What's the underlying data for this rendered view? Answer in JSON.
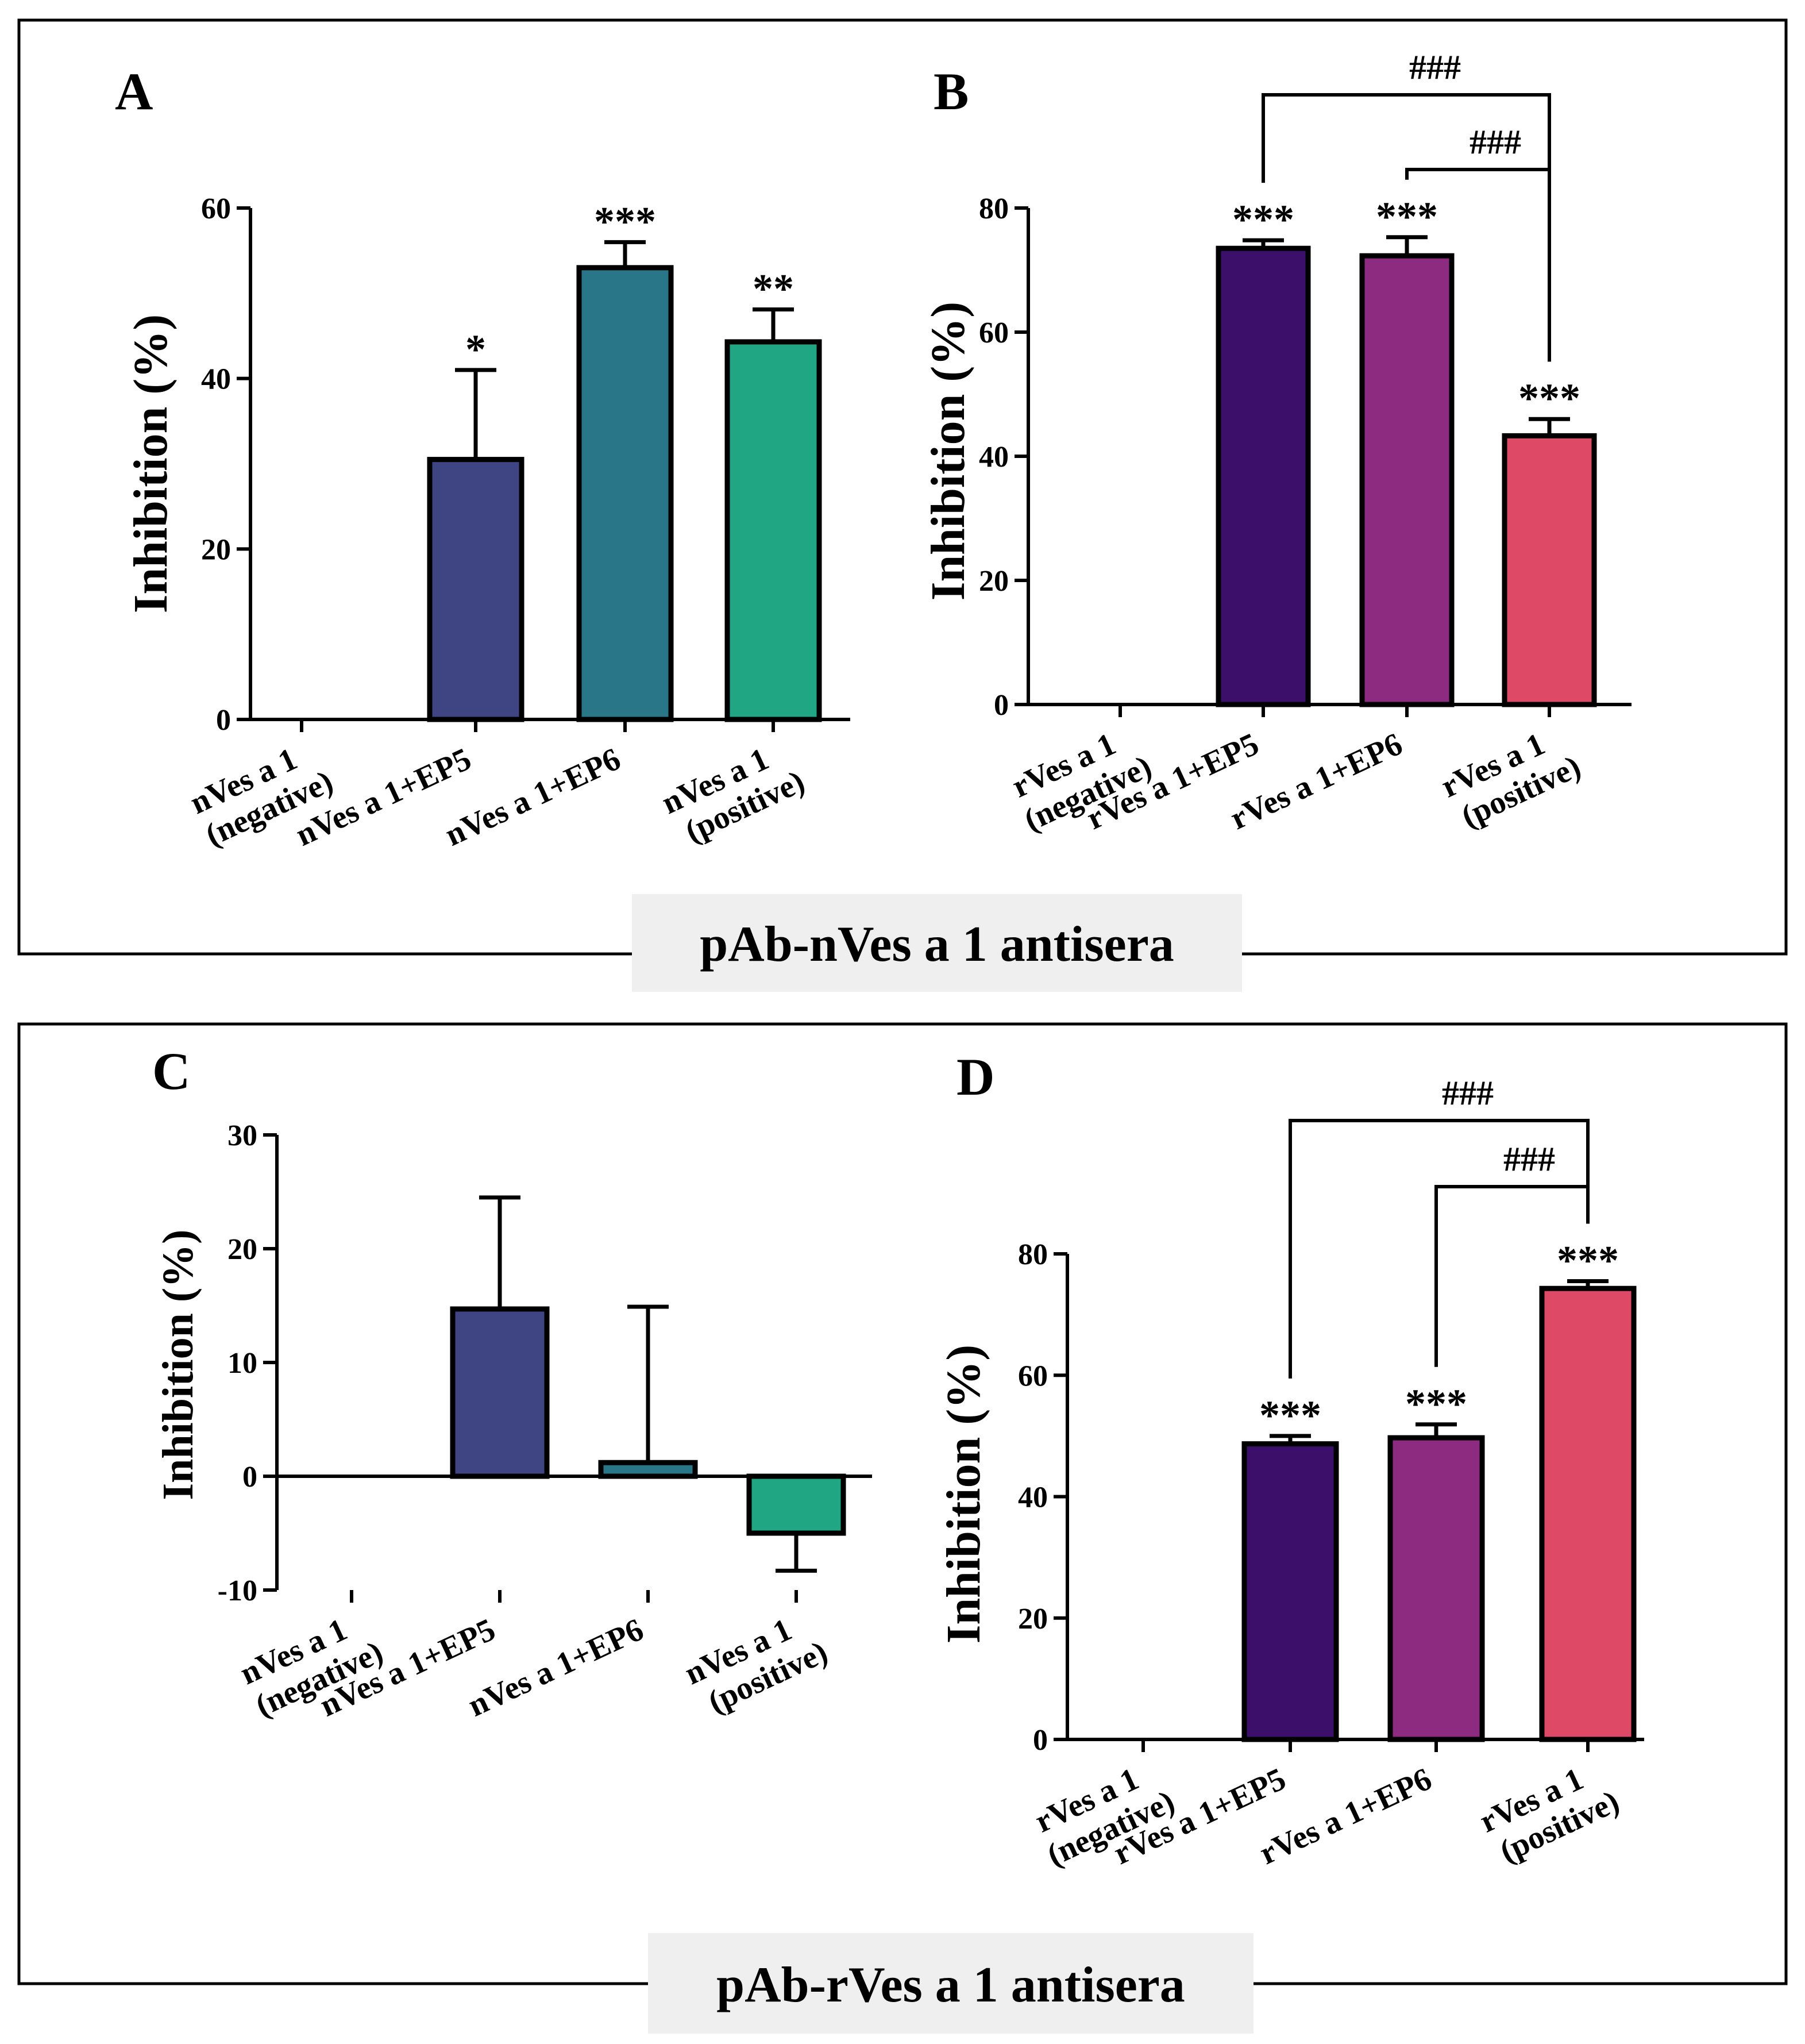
{
  "colors": {
    "indigo": "#3f4582",
    "teal": "#2a7689",
    "green": "#21a683",
    "deep_purple": "#3c0f6b",
    "magenta": "#8c2b80",
    "red": "#de4966",
    "caption_bg": "#efefef",
    "black": "#000000"
  },
  "groups": [
    {
      "caption": "pAb-nVes a 1 antisera"
    },
    {
      "caption": "pAb-rVes a 1 antisera"
    }
  ],
  "chart_data": [
    {
      "panel": "A",
      "type": "bar",
      "ylabel": "Inhibition (%)",
      "ylim": [
        0,
        60
      ],
      "yticks": [
        0,
        20,
        40,
        60
      ],
      "categories": [
        {
          "line1": "nVes a 1",
          "line2": "(negative)"
        },
        {
          "line1": "nVes a 1+EP5",
          "line2": ""
        },
        {
          "line1": "nVes a 1+EP6",
          "line2": ""
        },
        {
          "line1": "nVes a 1",
          "line2": "(positive)"
        }
      ],
      "values": [
        0,
        30.5,
        53,
        44.3
      ],
      "errors": [
        0,
        10.5,
        3,
        3.8
      ],
      "colors": [
        "indigo",
        "indigo",
        "teal",
        "green"
      ],
      "significance": [
        "",
        "*",
        "***",
        "**"
      ],
      "comparisons": []
    },
    {
      "panel": "B",
      "type": "bar",
      "ylabel": "Inhibition (%)",
      "ylim": [
        0,
        80
      ],
      "yticks": [
        0,
        20,
        40,
        60,
        80
      ],
      "categories": [
        {
          "line1": "rVes a 1",
          "line2": "(negative)"
        },
        {
          "line1": "rVes a 1+EP5",
          "line2": ""
        },
        {
          "line1": "rVes a 1+EP6",
          "line2": ""
        },
        {
          "line1": "rVes a 1",
          "line2": "(positive)"
        }
      ],
      "values": [
        0,
        73.5,
        72.3,
        43.3
      ],
      "errors": [
        0,
        1.3,
        3,
        2.7
      ],
      "colors": [
        "deep_purple",
        "deep_purple",
        "magenta",
        "red"
      ],
      "significance": [
        "",
        "***",
        "***",
        "***"
      ],
      "comparisons": [
        {
          "from": 1,
          "to": 3,
          "label": "###"
        },
        {
          "from": 2,
          "to": 3,
          "label": "###"
        }
      ]
    },
    {
      "panel": "C",
      "type": "bar",
      "ylabel": "Inhibition (%)",
      "ylim": [
        -10,
        30
      ],
      "yticks": [
        -10,
        0,
        10,
        20,
        30
      ],
      "categories": [
        {
          "line1": "nVes a 1",
          "line2": "(negative)"
        },
        {
          "line1": "nVes a 1+EP5",
          "line2": ""
        },
        {
          "line1": "nVes a 1+EP6",
          "line2": ""
        },
        {
          "line1": "nVes a 1",
          "line2": "(positive)"
        }
      ],
      "values": [
        0,
        14.7,
        1.2,
        -5
      ],
      "errors": [
        0,
        9.8,
        13.7,
        3.3
      ],
      "colors": [
        "indigo",
        "indigo",
        "teal",
        "green"
      ],
      "significance": [
        "",
        "",
        "",
        ""
      ],
      "comparisons": []
    },
    {
      "panel": "D",
      "type": "bar",
      "ylabel": "Inhibition (%)",
      "ylim": [
        0,
        80
      ],
      "yticks": [
        0,
        20,
        40,
        60,
        80
      ],
      "categories": [
        {
          "line1": "rVes a 1",
          "line2": "(negative)"
        },
        {
          "line1": "rVes a 1+EP5",
          "line2": ""
        },
        {
          "line1": "rVes a 1+EP6",
          "line2": ""
        },
        {
          "line1": "rVes a 1",
          "line2": "(positive)"
        }
      ],
      "values": [
        0,
        48.7,
        49.7,
        74.3
      ],
      "errors": [
        0,
        1.3,
        2.2,
        1.2
      ],
      "colors": [
        "deep_purple",
        "deep_purple",
        "magenta",
        "red"
      ],
      "significance": [
        "",
        "***",
        "***",
        "***"
      ],
      "comparisons": [
        {
          "from": 1,
          "to": 3,
          "label": "###"
        },
        {
          "from": 2,
          "to": 3,
          "label": "###"
        }
      ]
    }
  ]
}
